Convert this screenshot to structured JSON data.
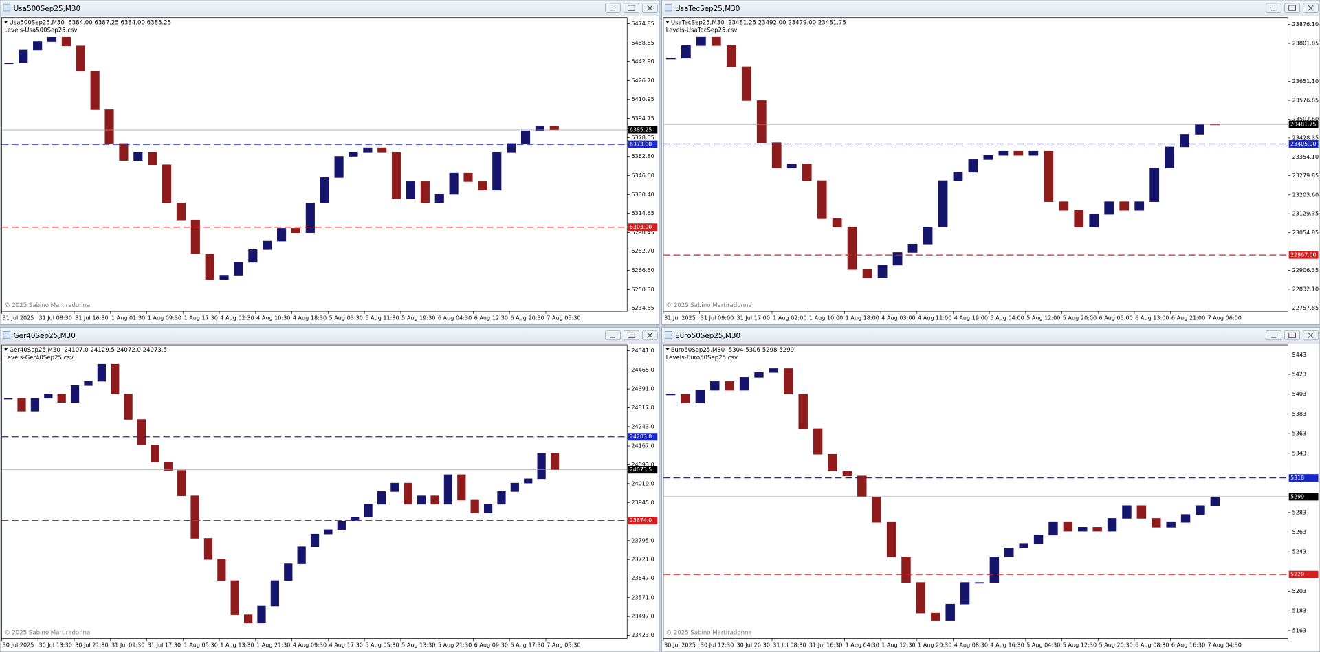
{
  "chart_data": [
    {
      "type": "candlestick",
      "title": "Usa500Sep25,M30",
      "active": false,
      "info": "Usa500Sep25,M30  6384.00 6387.25 6384.00 6385.25",
      "levels_file": "Levels-Usa500Sep25.csv",
      "copyright": "© 2025 Sabino Martiradonna",
      "up_color": "#15156b",
      "down_color": "#8e1c1c",
      "x_labels": [
        "31 Jul 2025",
        "31 Jul 08:30",
        "31 Jul 16:30",
        "1 Aug 01:30",
        "1 Aug 09:30",
        "1 Aug 17:30",
        "4 Aug 02:30",
        "4 Aug 10:30",
        "4 Aug 18:30",
        "5 Aug 03:30",
        "5 Aug 11:30",
        "5 Aug 19:30",
        "6 Aug 04:30",
        "6 Aug 12:30",
        "6 Aug 20:30",
        "7 Aug 05:30"
      ],
      "close": [
        6441.8,
        6452.6,
        6459.8,
        6463.4,
        6456.2,
        6434.7,
        6402.4,
        6373.7,
        6359.3,
        6366.5,
        6355.8,
        6323.5,
        6309.1,
        6280.5,
        6258.9,
        6262.5,
        6273.3,
        6284.1,
        6291.2,
        6302.0,
        6298.4,
        6323.5,
        6345.0,
        6362.9,
        6366.5,
        6370.1,
        6366.5,
        6327.1,
        6341.5,
        6323.5,
        6330.7,
        6348.6,
        6341.5,
        6334.3,
        6366.5,
        6373.7,
        6384.5,
        6388.1,
        6385.25
      ],
      "ylim": [
        6232,
        6480
      ],
      "yticks": [
        6474.85,
        6458.65,
        {
          "value": 6442.9,
          "label": "6442.90"
        },
        {
          "value": 6426.7,
          "label": "6426.70"
        },
        6410.95,
        6394.75,
        6378.55,
        {
          "value": 6362.8,
          "label": "6362.80"
        },
        {
          "value": 6346.6,
          "label": "6346.60"
        },
        {
          "value": 6330.4,
          "label": "6330.40"
        },
        6314.65,
        6298.45,
        {
          "value": 6282.7,
          "label": "6282.70"
        },
        {
          "value": 6266.5,
          "label": "6266.50"
        },
        {
          "value": 6250.3,
          "label": "6250.30"
        },
        6234.55
      ],
      "price_lines": [
        {
          "value": 6385.25,
          "color": "#000000",
          "line_color": "#9a9a9a",
          "dashed": false
        },
        {
          "value": 6373,
          "label": "6373.00",
          "color": "#1a28c8",
          "line_color": "#1a28c8",
          "dashed": true
        },
        {
          "value": 6303,
          "label": "6303.00",
          "color": "#d42020",
          "line_color": "#d42020",
          "dashed": true
        }
      ]
    },
    {
      "type": "candlestick",
      "title": "UsaTecSep25,M30",
      "active": true,
      "info": "UsaTecSep25,M30  23481.25 23492.00 23479.00 23481.75",
      "levels_file": "Levels-UsaTecSep25.csv",
      "copyright": "© 2025 Sabino Martiradonna",
      "up_color": "#15156b",
      "down_color": "#8e1c1c",
      "x_labels": [
        "31 Jul 2025",
        "31 Jul 09:00",
        "31 Jul 17:00",
        "1 Aug 02:00",
        "1 Aug 10:00",
        "1 Aug 18:00",
        "4 Aug 03:00",
        "4 Aug 11:00",
        "4 Aug 19:00",
        "5 Aug 04:00",
        "5 Aug 12:00",
        "5 Aug 20:00",
        "6 Aug 05:00",
        "6 Aug 13:00",
        "6 Aug 21:00",
        "7 Aug 06:00"
      ],
      "close": [
        23743,
        23793,
        23826,
        23793,
        23710,
        23576,
        23410,
        23310,
        23326,
        23260,
        23110,
        23077,
        22910,
        22877,
        22927,
        22977,
        23010,
        23077,
        23260,
        23293,
        23343,
        23360,
        23376,
        23360,
        23376,
        23177,
        23143,
        23077,
        23127,
        23177,
        23143,
        23177,
        23310,
        23393,
        23443,
        23483,
        23481.75
      ],
      "ylim": [
        22745,
        23903
      ],
      "yticks": [
        {
          "value": 23876.1,
          "label": "23876.10"
        },
        23801.85,
        {
          "value": 23651.1,
          "label": "23651.10"
        },
        23576.85,
        {
          "value": 23502.6,
          "label": "23502.60"
        },
        23428.35,
        {
          "value": 23354.1,
          "label": "23354.10"
        },
        23279.85,
        {
          "value": 23203.6,
          "label": "23203.60"
        },
        23129.35,
        23054.85,
        22906.35,
        {
          "value": 22832.1,
          "label": "22832.10"
        },
        22757.85
      ],
      "price_lines": [
        {
          "value": 23481.75,
          "color": "#000000",
          "line_color": "#9a9a9a",
          "dashed": false
        },
        {
          "value": 23405,
          "label": "23405.00",
          "color": "#1a28c8",
          "line_color": "#1a28c8",
          "dashed": true
        },
        {
          "value": 22967,
          "label": "22967.00",
          "color": "#d42020",
          "line_color": "#d42020",
          "dashed": true
        }
      ]
    },
    {
      "type": "candlestick",
      "title": "Ger40Sep25,M30",
      "active": false,
      "info": "Ger40Sep25,M30  24107.0 24129.5 24072.0 24073.5",
      "levels_file": "Levels-Ger40Sep25.csv",
      "copyright": "© 2025 Sabino Martiradonna",
      "up_color": "#15156b",
      "down_color": "#8e1c1c",
      "x_labels": [
        "30 Jul 2025",
        "30 Jul 13:30",
        "30 Jul 21:30",
        "31 Jul 09:30",
        "31 Jul 17:30",
        "1 Aug 05:30",
        "1 Aug 13:30",
        "1 Aug 21:30",
        "4 Aug 09:30",
        "4 Aug 17:30",
        "5 Aug 05:30",
        "5 Aug 13:30",
        "5 Aug 21:30",
        "6 Aug 09:30",
        "6 Aug 17:30",
        "7 Aug 05:30"
      ],
      "close": [
        24354,
        24304,
        24354,
        24371,
        24338,
        24404,
        24421,
        24488,
        24371,
        24271,
        24171,
        24104,
        24071,
        23971,
        23804,
        23721,
        23638,
        23504,
        23471,
        23538,
        23638,
        23704,
        23771,
        23821,
        23838,
        23871,
        23888,
        23938,
        23988,
        24021,
        23938,
        23971,
        23938,
        24054,
        23954,
        23904,
        23938,
        23988,
        24021,
        24038,
        24138,
        24073.5
      ],
      "ylim": [
        23410,
        24564
      ],
      "yticks": [
        {
          "value": 24541,
          "label": "24541.0"
        },
        {
          "value": 24465,
          "label": "24465.0"
        },
        {
          "value": 24391,
          "label": "24391.0"
        },
        {
          "value": 24317,
          "label": "24317.0"
        },
        {
          "value": 24243,
          "label": "24243.0"
        },
        {
          "value": 24167,
          "label": "24167.0"
        },
        {
          "value": 24093,
          "label": "24093.0"
        },
        {
          "value": 24019,
          "label": "24019.0"
        },
        {
          "value": 23945,
          "label": "23945.0"
        },
        {
          "value": 23795,
          "label": "23795.0"
        },
        {
          "value": 23721,
          "label": "23721.0"
        },
        {
          "value": 23647,
          "label": "23647.0"
        },
        {
          "value": 23571,
          "label": "23571.0"
        },
        {
          "value": 23497,
          "label": "23497.0"
        },
        {
          "value": 23423,
          "label": "23423.0"
        }
      ],
      "price_lines": [
        {
          "value": 24073.5,
          "color": "#000000",
          "line_color": "#9a9a9a",
          "dashed": false
        },
        {
          "value": 24203,
          "label": "24203.0",
          "color": "#1a28c8",
          "line_color": "#1a28c8",
          "dashed": true
        },
        {
          "value": 23874,
          "label": "23874.0",
          "color": "#d42020",
          "line_color": "#d42020",
          "dashed": true
        }
      ]
    },
    {
      "type": "candlestick",
      "title": "Euro50Sep25,M30",
      "active": false,
      "info": "Euro50Sep25,M30  5304 5306 5298 5299",
      "levels_file": "Levels-Euro50Sep25.csv",
      "copyright": "© 2025 Sabino Martiradonna",
      "up_color": "#15156b",
      "down_color": "#8e1c1c",
      "x_labels": [
        "30 Jul 2025",
        "30 Jul 12:30",
        "30 Jul 20:30",
        "31 Jul 08:30",
        "31 Jul 16:30",
        "1 Aug 04:30",
        "1 Aug 12:30",
        "1 Aug 20:30",
        "4 Aug 08:30",
        "4 Aug 16:30",
        "5 Aug 04:30",
        "5 Aug 12:30",
        "5 Aug 20:30",
        "6 Aug 08:30",
        "6 Aug 16:30",
        "7 Aug 04:30"
      ],
      "close": [
        5403,
        5394,
        5407,
        5416,
        5407,
        5420,
        5425,
        5429,
        5403,
        5368,
        5342,
        5325,
        5320,
        5299,
        5273,
        5238,
        5212,
        5181,
        5173,
        5190,
        5212,
        5212,
        5238,
        5247,
        5251,
        5260,
        5273,
        5264,
        5268,
        5264,
        5277,
        5290,
        5277,
        5268,
        5273,
        5281,
        5290,
        5299
      ],
      "ylim": [
        5155,
        5453
      ],
      "yticks": [
        5443,
        5423,
        5403,
        5383,
        5363,
        5343,
        5283,
        5263,
        5243,
        5203,
        5183,
        5163
      ],
      "price_lines": [
        {
          "value": 5299,
          "color": "#000000",
          "line_color": "#9a9a9a",
          "dashed": false
        },
        {
          "value": 5318,
          "color": "#1a28c8",
          "line_color": "#1a28c8",
          "dashed": true
        },
        {
          "value": 5220,
          "color": "#d42020",
          "line_color": "#d42020",
          "dashed": true
        }
      ]
    }
  ]
}
